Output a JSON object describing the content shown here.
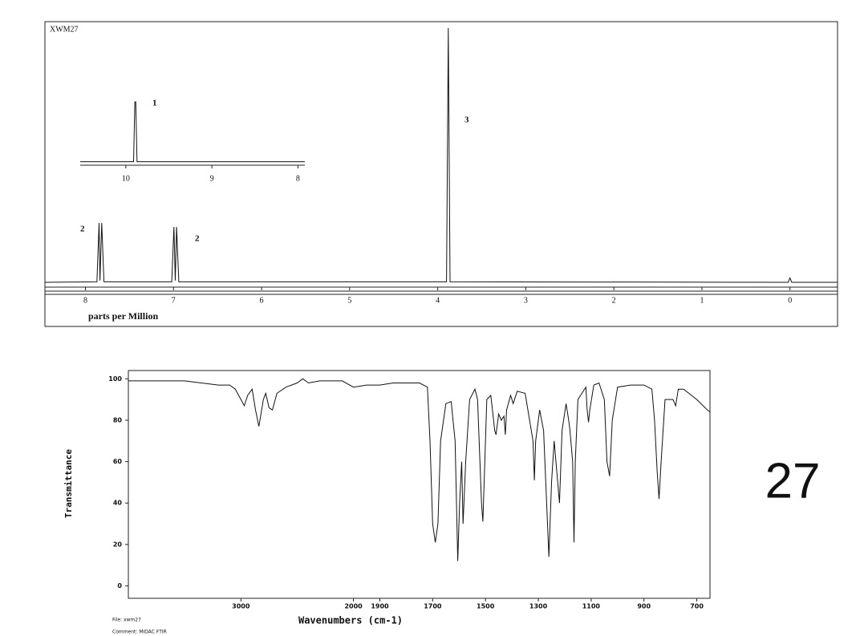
{
  "chart_data": [
    {
      "type": "line",
      "title": "XWM27",
      "xlabel": "parts per Million",
      "x": [
        8.46,
        7.87,
        7.845,
        7.835,
        7.815,
        7.79,
        7.02,
        6.995,
        6.98,
        6.965,
        6.94,
        3.9,
        3.88,
        3.86,
        0.02,
        0.0,
        -0.02,
        -0.54
      ],
      "values": [
        0.3,
        0.5,
        23.6,
        1,
        23.6,
        0.5,
        0.5,
        22,
        1,
        22,
        0.5,
        0.5,
        100,
        0.5,
        0.3,
        2,
        0.3,
        0.3
      ],
      "xlim": [
        8.46,
        -0.54
      ],
      "ylim": [
        0,
        100
      ],
      "xticks": [
        8,
        7,
        6,
        5,
        4,
        3,
        2,
        1,
        0
      ],
      "color": "#111111",
      "annotations": [
        "2",
        "2",
        "3"
      ]
    },
    {
      "type": "line",
      "x": [
        10.53,
        9.91,
        9.895,
        9.885,
        9.87,
        7.92
      ],
      "values": [
        0.5,
        0.5,
        95,
        95,
        0.5,
        0.5
      ],
      "xlim": [
        10.53,
        7.92
      ],
      "ylim": [
        0,
        100
      ],
      "xticks": [
        10,
        9,
        8
      ],
      "color": "#111111",
      "annotations": [
        "1"
      ]
    },
    {
      "type": "line",
      "xlabel": "Wavenumbers (cm-1)",
      "ylabel": "Transmittance",
      "x": [
        4000,
        3500,
        3200,
        3100,
        3050,
        3000,
        2970,
        2940,
        2900,
        2870,
        2840,
        2800,
        2780,
        2750,
        2720,
        2680,
        2600,
        2500,
        2450,
        2400,
        2300,
        2100,
        2000,
        1950,
        1900,
        1850,
        1750,
        1720,
        1710,
        1700,
        1690,
        1680,
        1670,
        1650,
        1630,
        1615,
        1605,
        1598,
        1590,
        1585,
        1575,
        1560,
        1540,
        1530,
        1515,
        1510,
        1505,
        1495,
        1480,
        1465,
        1460,
        1450,
        1440,
        1430,
        1425,
        1420,
        1405,
        1395,
        1380,
        1350,
        1320,
        1315,
        1310,
        1295,
        1280,
        1260,
        1250,
        1240,
        1230,
        1220,
        1210,
        1195,
        1185,
        1180,
        1170,
        1165,
        1160,
        1150,
        1120,
        1115,
        1110,
        1105,
        1090,
        1070,
        1050,
        1040,
        1030,
        1020,
        1000,
        950,
        900,
        870,
        860,
        850,
        843,
        835,
        820,
        790,
        780,
        770,
        750,
        700,
        660,
        650
      ],
      "values": [
        99,
        99,
        97,
        97,
        95,
        90,
        87,
        92,
        95,
        85,
        77,
        90,
        93,
        86,
        85,
        93,
        96,
        98,
        100,
        98,
        99,
        99,
        96,
        97,
        97,
        98,
        98,
        96,
        70,
        30,
        21,
        30,
        70,
        88,
        89,
        70,
        12,
        40,
        60,
        30,
        60,
        90,
        95,
        90,
        40,
        31,
        50,
        90,
        92,
        75,
        73,
        83,
        80,
        82,
        73,
        85,
        92,
        88,
        94,
        93,
        70,
        51,
        70,
        85,
        75,
        14,
        50,
        70,
        55,
        40,
        75,
        88,
        80,
        75,
        60,
        21,
        60,
        90,
        96,
        85,
        79,
        85,
        97,
        98,
        90,
        60,
        53,
        80,
        96,
        97,
        97,
        95,
        80,
        55,
        42,
        60,
        90,
        90,
        87,
        95,
        95,
        90,
        85,
        84
      ],
      "xlim": [
        4000,
        650
      ],
      "x_scale_break": 2000,
      "ylim": [
        -6,
        104
      ],
      "xticks": [
        3000,
        2000,
        1900,
        1700,
        1500,
        1300,
        1100,
        900,
        700
      ],
      "yticks": [
        0,
        20,
        40,
        60,
        80,
        100
      ],
      "color": "#111111"
    }
  ],
  "label": "27",
  "file": "File: xwm27",
  "comment": "Comment: MIDAC FTIR"
}
